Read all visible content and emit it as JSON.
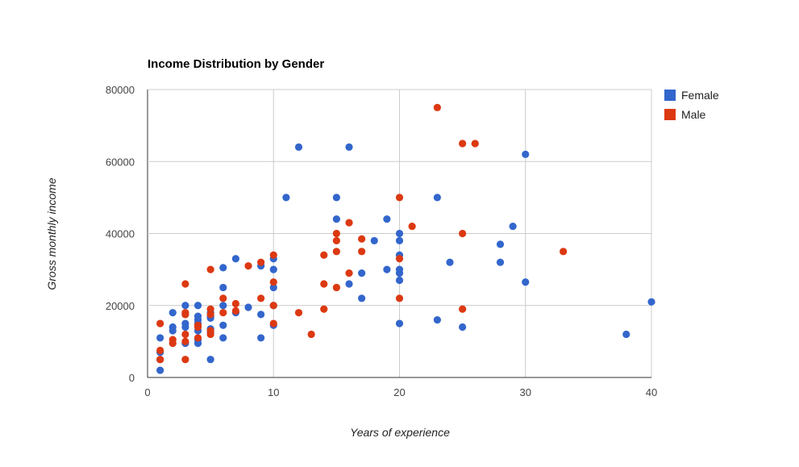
{
  "chart_data": {
    "type": "scatter",
    "title": "Income Distribution by Gender",
    "xlabel": "Years of experience",
    "ylabel": "Gross monthly income",
    "xlim": [
      0,
      40
    ],
    "ylim": [
      0,
      80000
    ],
    "x_ticks": [
      "0",
      "10",
      "20",
      "30",
      "40"
    ],
    "y_ticks": [
      "0",
      "20000",
      "40000",
      "60000",
      "80000"
    ],
    "grid": true,
    "legend_position": "right",
    "series": [
      {
        "name": "Female",
        "color": "#3366cc",
        "points": [
          [
            1,
            2000
          ],
          [
            1,
            5000
          ],
          [
            1,
            7000
          ],
          [
            1,
            11000
          ],
          [
            2,
            13000
          ],
          [
            2,
            14000
          ],
          [
            2,
            18000
          ],
          [
            3,
            9500
          ],
          [
            3,
            14000
          ],
          [
            3,
            15000
          ],
          [
            3,
            17500
          ],
          [
            3,
            20000
          ],
          [
            4,
            9500
          ],
          [
            4,
            10500
          ],
          [
            4,
            13000
          ],
          [
            4,
            15000
          ],
          [
            4,
            16000
          ],
          [
            4,
            17000
          ],
          [
            4,
            20000
          ],
          [
            5,
            5000
          ],
          [
            5,
            12500
          ],
          [
            5,
            13500
          ],
          [
            5,
            16500
          ],
          [
            5,
            17000
          ],
          [
            5,
            18000
          ],
          [
            6,
            11000
          ],
          [
            6,
            14500
          ],
          [
            6,
            20000
          ],
          [
            6,
            25000
          ],
          [
            6,
            30500
          ],
          [
            7,
            18000
          ],
          [
            7,
            33000
          ],
          [
            8,
            19500
          ],
          [
            9,
            11000
          ],
          [
            9,
            17500
          ],
          [
            9,
            31000
          ],
          [
            10,
            14500
          ],
          [
            10,
            20000
          ],
          [
            10,
            25000
          ],
          [
            10,
            30000
          ],
          [
            10,
            33000
          ],
          [
            11,
            50000
          ],
          [
            12,
            64000
          ],
          [
            15,
            44000
          ],
          [
            15,
            50000
          ],
          [
            16,
            26000
          ],
          [
            16,
            64000
          ],
          [
            17,
            22000
          ],
          [
            17,
            29000
          ],
          [
            18,
            38000
          ],
          [
            19,
            30000
          ],
          [
            19,
            44000
          ],
          [
            20,
            15000
          ],
          [
            20,
            27000
          ],
          [
            20,
            29000
          ],
          [
            20,
            30000
          ],
          [
            20,
            34000
          ],
          [
            20,
            38000
          ],
          [
            20,
            40000
          ],
          [
            23,
            16000
          ],
          [
            23,
            50000
          ],
          [
            24,
            32000
          ],
          [
            25,
            14000
          ],
          [
            28,
            32000
          ],
          [
            28,
            37000
          ],
          [
            29,
            42000
          ],
          [
            30,
            26500
          ],
          [
            30,
            62000
          ],
          [
            38,
            12000
          ],
          [
            40,
            21000
          ]
        ]
      },
      {
        "name": "Male",
        "color": "#dc3912",
        "points": [
          [
            1,
            5000
          ],
          [
            1,
            7500
          ],
          [
            1,
            15000
          ],
          [
            2,
            9500
          ],
          [
            2,
            10500
          ],
          [
            3,
            5000
          ],
          [
            3,
            10000
          ],
          [
            3,
            12000
          ],
          [
            3,
            17500
          ],
          [
            3,
            18000
          ],
          [
            3,
            26000
          ],
          [
            4,
            11000
          ],
          [
            4,
            14000
          ],
          [
            4,
            14500
          ],
          [
            5,
            12000
          ],
          [
            5,
            13000
          ],
          [
            5,
            17500
          ],
          [
            5,
            19000
          ],
          [
            5,
            30000
          ],
          [
            6,
            18000
          ],
          [
            6,
            22000
          ],
          [
            7,
            18500
          ],
          [
            7,
            20500
          ],
          [
            8,
            31000
          ],
          [
            9,
            22000
          ],
          [
            9,
            32000
          ],
          [
            10,
            15000
          ],
          [
            10,
            20000
          ],
          [
            10,
            26500
          ],
          [
            10,
            34000
          ],
          [
            12,
            18000
          ],
          [
            13,
            12000
          ],
          [
            14,
            19000
          ],
          [
            14,
            26000
          ],
          [
            14,
            34000
          ],
          [
            15,
            25000
          ],
          [
            15,
            35000
          ],
          [
            15,
            38000
          ],
          [
            15,
            40000
          ],
          [
            16,
            29000
          ],
          [
            16,
            43000
          ],
          [
            17,
            35000
          ],
          [
            17,
            38500
          ],
          [
            20,
            22000
          ],
          [
            20,
            33000
          ],
          [
            20,
            50000
          ],
          [
            21,
            42000
          ],
          [
            23,
            75000
          ],
          [
            25,
            19000
          ],
          [
            25,
            40000
          ],
          [
            25,
            65000
          ],
          [
            26,
            65000
          ],
          [
            33,
            35000
          ]
        ]
      }
    ]
  }
}
